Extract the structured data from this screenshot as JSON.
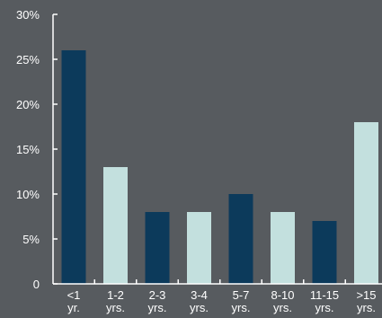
{
  "chart_data": {
    "type": "bar",
    "categories": [
      [
        "<1",
        "yr."
      ],
      [
        "1-2",
        "yrs."
      ],
      [
        "2-3",
        "yrs."
      ],
      [
        "3-4",
        "yrs."
      ],
      [
        "5-7",
        "yrs."
      ],
      [
        "8-10",
        "yrs."
      ],
      [
        "11-15",
        "yrs."
      ],
      [
        ">15",
        "yrs."
      ]
    ],
    "values": [
      26,
      13,
      8,
      8,
      10,
      8,
      7,
      18
    ],
    "y_ticks": [
      "0",
      "5%",
      "10%",
      "15%",
      "20%",
      "25%",
      "30%"
    ],
    "ylim": [
      0,
      30
    ],
    "title": "",
    "xlabel": "",
    "ylabel": "",
    "grid": false,
    "legend": "none",
    "colors": {
      "dark_bar": "#0c3a5b",
      "light_bar": "#c3e0de",
      "axis": "#ffffff",
      "background": "#575b5f"
    }
  }
}
